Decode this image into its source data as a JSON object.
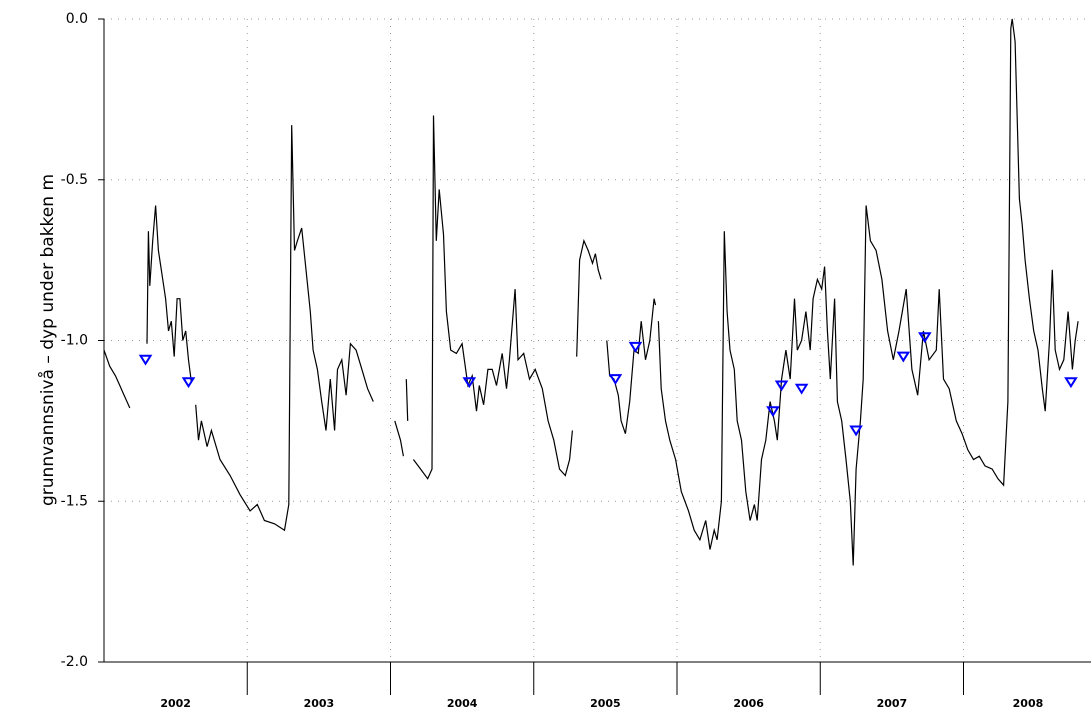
{
  "chart_data": {
    "type": "line",
    "ylabel": "grunnvannsnivå  –  dyp  under  bakken    m",
    "xlim": [
      2002,
      2008.89
    ],
    "ylim": [
      -2,
      0
    ],
    "yticks": [
      {
        "value": 0,
        "label": "0.0"
      },
      {
        "value": -0.5,
        "label": "-0.5"
      },
      {
        "value": -1,
        "label": "-1.0"
      },
      {
        "value": -1.5,
        "label": "-1.5"
      },
      {
        "value": -2,
        "label": "-2.0"
      }
    ],
    "xticks": [
      {
        "value": 2002.5,
        "label": "2002"
      },
      {
        "value": 2003.5,
        "label": "2003"
      },
      {
        "value": 2004.5,
        "label": "2004"
      },
      {
        "value": 2005.5,
        "label": "2005"
      },
      {
        "value": 2006.5,
        "label": "2006"
      },
      {
        "value": 2007.5,
        "label": "2007"
      },
      {
        "value": 2008.45,
        "label": "2008"
      }
    ],
    "year_boundaries": [
      2003,
      2004,
      2005,
      2006,
      2007,
      2008
    ],
    "grid": true,
    "series": [
      {
        "color": "#000000",
        "mode": "line",
        "x": [
          2002.0,
          2002.04,
          2002.08,
          2002.11,
          2002.14,
          2002.18,
          2002.24,
          2002.3,
          2002.31,
          2002.32,
          2002.34,
          2002.36,
          2002.38,
          2002.4,
          2002.43,
          2002.45,
          2002.47,
          2002.49,
          2002.51,
          2002.53,
          2002.55,
          2002.57,
          2002.59,
          2002.61,
          2002.62,
          2002.64,
          2002.66,
          2002.68,
          2002.72,
          2002.75,
          2002.81,
          2002.88,
          2002.95,
          2003.02,
          2003.07,
          2003.12,
          2003.19,
          2003.26,
          2003.29,
          2003.31,
          2003.33,
          2003.35,
          2003.38,
          2003.41,
          2003.44,
          2003.46,
          2003.49,
          2003.52,
          2003.55,
          2003.58,
          2003.61,
          2003.63,
          2003.66,
          2003.69,
          2003.72,
          2003.76,
          2003.8,
          2003.84,
          2003.88,
          2003.95,
          2004.03,
          2004.07,
          2004.09,
          2004.1,
          2004.11,
          2004.12,
          2004.14,
          2004.16,
          2004.21,
          2004.26,
          2004.29,
          2004.3,
          2004.32,
          2004.34,
          2004.37,
          2004.39,
          2004.42,
          2004.46,
          2004.5,
          2004.54,
          2004.57,
          2004.6,
          2004.62,
          2004.65,
          2004.68,
          2004.71,
          2004.74,
          2004.78,
          2004.81,
          2004.83,
          2004.87,
          2004.89,
          2004.93,
          2004.97,
          2005.01,
          2005.06,
          2005.1,
          2005.14,
          2005.18,
          2005.22,
          2005.25,
          2005.27,
          2005.28,
          2005.3,
          2005.32,
          2005.35,
          2005.38,
          2005.41,
          2005.43,
          2005.45,
          2005.47,
          2005.49,
          2005.51,
          2005.53,
          2005.56,
          2005.59,
          2005.61,
          2005.64,
          2005.67,
          2005.7,
          2005.73,
          2005.75,
          2005.78,
          2005.81,
          2005.84,
          2005.85,
          2005.86,
          2005.87,
          2005.89,
          2005.92,
          2005.95,
          2005.99,
          2006.03,
          2006.08,
          2006.12,
          2006.16,
          2006.2,
          2006.23,
          2006.26,
          2006.28,
          2006.31,
          2006.33,
          2006.35,
          2006.37,
          2006.4,
          2006.42,
          2006.45,
          2006.48,
          2006.51,
          2006.54,
          2006.56,
          2006.59,
          2006.62,
          2006.65,
          2006.68,
          2006.7,
          2006.73,
          2006.76,
          2006.79,
          2006.82,
          2006.84,
          2006.87,
          2006.9,
          2006.93,
          2006.95,
          2006.98,
          2007.01,
          2007.03,
          2007.05,
          2007.07,
          2007.1,
          2007.12,
          2007.15,
          2007.18,
          2007.21,
          2007.23,
          2007.25,
          2007.28,
          2007.3,
          2007.32,
          2007.35,
          2007.39,
          2007.43,
          2007.47,
          2007.51,
          2007.55,
          2007.6,
          2007.64,
          2007.68,
          2007.72,
          2007.76,
          2007.81,
          2007.83,
          2007.86,
          2007.9,
          2007.95,
          2007.99,
          2008.03,
          2008.07,
          2008.11,
          2008.15,
          2008.2,
          2008.24,
          2008.28,
          2008.31,
          2008.33,
          2008.34,
          2008.36,
          2008.39,
          2008.41,
          2008.43,
          2008.46,
          2008.49,
          2008.52,
          2008.55,
          2008.57,
          2008.6,
          2008.62,
          2008.64,
          2008.67,
          2008.7,
          2008.73,
          2008.76,
          2008.78,
          2008.8
        ],
        "values": [
          -1.03,
          -1.08,
          -1.11,
          -1.14,
          -1.17,
          -1.21,
          null,
          -1.01,
          -0.66,
          -0.83,
          -0.69,
          -0.58,
          -0.72,
          -0.78,
          -0.87,
          -0.97,
          -0.94,
          -1.05,
          -0.87,
          -0.87,
          -1.0,
          -0.97,
          -1.06,
          -1.13,
          null,
          -1.2,
          -1.31,
          -1.25,
          -1.33,
          -1.28,
          -1.37,
          -1.42,
          -1.48,
          -1.53,
          -1.51,
          -1.56,
          -1.57,
          -1.59,
          -1.51,
          -0.33,
          -0.72,
          -0.69,
          -0.65,
          -0.78,
          -0.91,
          -1.03,
          -1.09,
          -1.19,
          -1.28,
          -1.12,
          -1.28,
          -1.09,
          -1.06,
          -1.17,
          -1.01,
          -1.03,
          -1.09,
          -1.15,
          -1.19,
          null,
          -1.25,
          -1.31,
          -1.36,
          null,
          -1.12,
          -1.25,
          null,
          -1.37,
          -1.4,
          -1.43,
          -1.4,
          -0.3,
          -0.69,
          -0.53,
          -0.67,
          -0.91,
          -1.03,
          -1.04,
          -1.01,
          -1.14,
          -1.11,
          -1.22,
          -1.14,
          -1.2,
          -1.09,
          -1.09,
          -1.14,
          -1.04,
          -1.15,
          -1.06,
          -0.84,
          -1.06,
          -1.04,
          -1.12,
          -1.09,
          -1.15,
          -1.25,
          -1.31,
          -1.4,
          -1.42,
          -1.37,
          -1.28,
          null,
          -1.05,
          -0.75,
          -0.69,
          -0.72,
          -0.76,
          -0.73,
          -0.78,
          -0.81,
          null,
          -1.0,
          -1.11,
          -1.12,
          -1.17,
          -1.25,
          -1.29,
          -1.19,
          -1.03,
          -1.04,
          -0.94,
          -1.06,
          -1.0,
          -0.87,
          -0.89,
          null,
          -0.94,
          -1.15,
          -1.25,
          -1.31,
          -1.37,
          -1.47,
          -1.53,
          -1.59,
          -1.62,
          -1.56,
          -1.65,
          -1.59,
          -1.62,
          -1.5,
          -0.66,
          -0.91,
          -1.03,
          -1.09,
          -1.25,
          -1.31,
          -1.47,
          -1.56,
          -1.51,
          -1.56,
          -1.37,
          -1.31,
          -1.19,
          -1.25,
          -1.31,
          -1.12,
          -1.03,
          -1.12,
          -0.87,
          -1.03,
          -1.0,
          -0.91,
          -1.03,
          -0.87,
          -0.81,
          -0.84,
          -0.77,
          -0.97,
          -1.12,
          -0.87,
          -1.19,
          -1.25,
          -1.37,
          -1.5,
          -1.7,
          -1.4,
          -1.25,
          -1.12,
          -0.58,
          -0.69,
          -0.72,
          -0.81,
          -0.97,
          -1.06,
          -0.97,
          -0.84,
          -1.09,
          -1.17,
          -0.97,
          -1.06,
          -1.03,
          -0.84,
          -1.12,
          -1.15,
          -1.25,
          -1.29,
          -1.34,
          -1.37,
          -1.36,
          -1.39,
          -1.4,
          -1.43,
          -1.45,
          -1.19,
          -0.03,
          0.0,
          -0.07,
          -0.56,
          -0.64,
          -0.75,
          -0.87,
          -0.97,
          -1.03,
          -1.15,
          -1.22,
          -1.0,
          -0.78,
          -1.03,
          -1.09,
          -1.06,
          -0.91,
          -1.09,
          -1.0,
          -0.94
        ]
      },
      {
        "color": "#0000ff",
        "mode": "markers",
        "marker": "triangle-down",
        "x": [
          2002.29,
          2002.59,
          2004.55,
          2005.57,
          2005.71,
          2006.67,
          2006.73,
          2006.87,
          2007.25,
          2007.58,
          2007.73,
          2008.75
        ],
        "values": [
          -1.06,
          -1.13,
          -1.13,
          -1.12,
          -1.02,
          -1.22,
          -1.14,
          -1.15,
          -1.28,
          -1.05,
          -0.99,
          -1.13
        ]
      }
    ]
  }
}
